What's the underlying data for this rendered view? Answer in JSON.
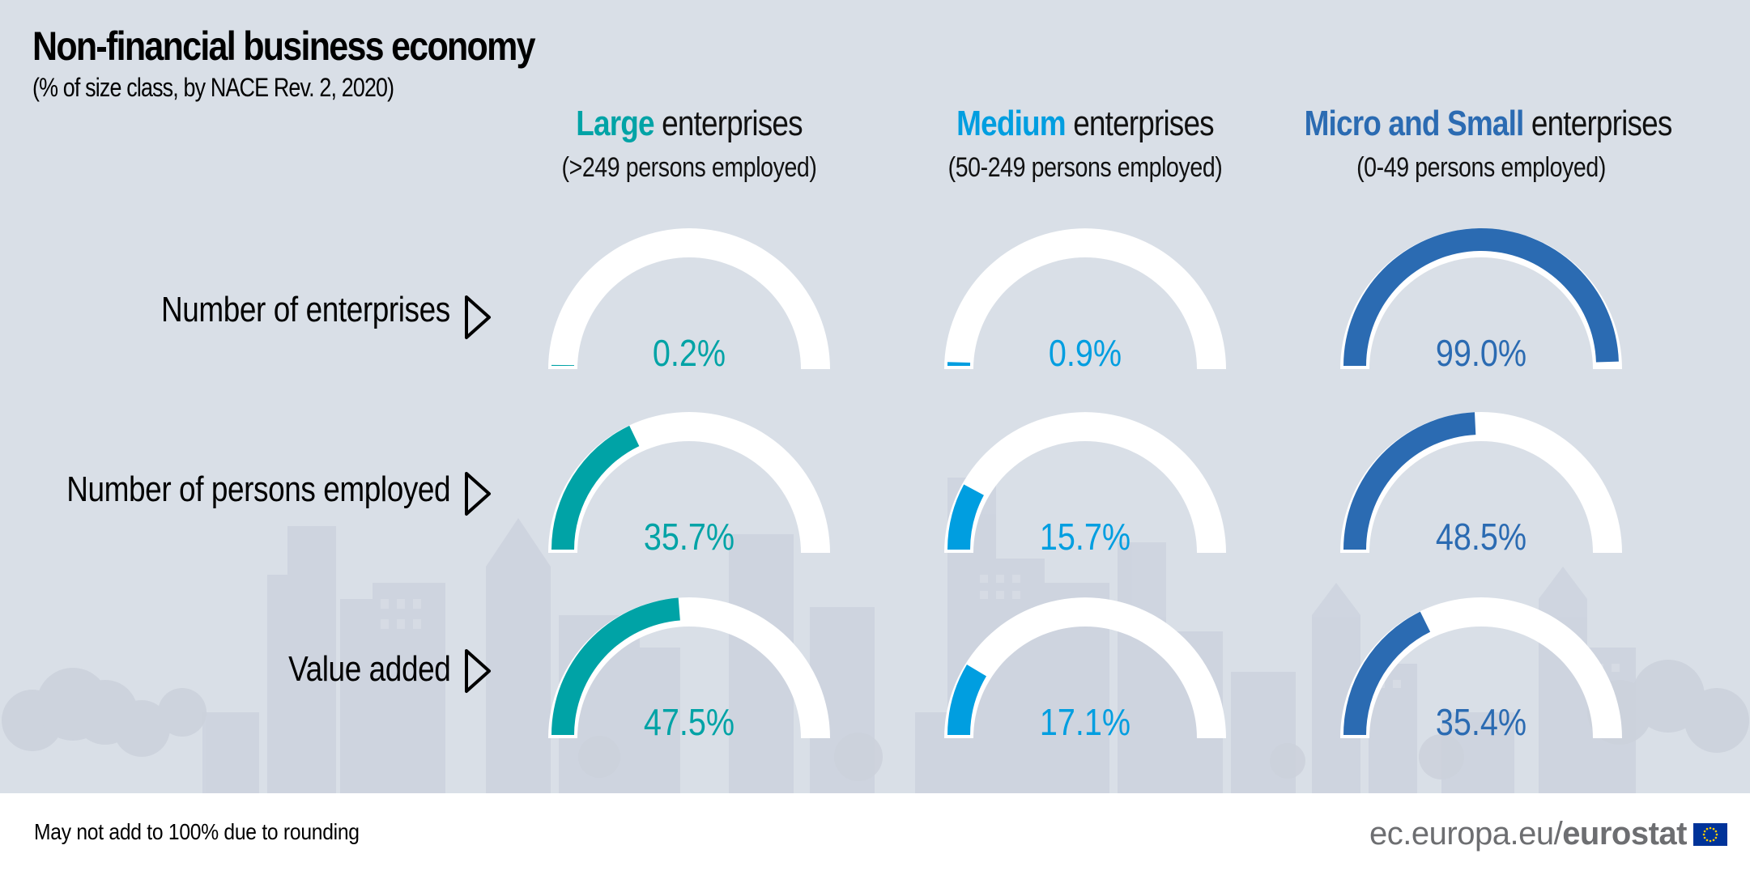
{
  "header": {
    "title": "Non-financial business economy",
    "subtitle": "(% of size class, by NACE Rev. 2, 2020)"
  },
  "columns": [
    {
      "highlight": "Large",
      "rest": " enterprises",
      "range": "(>249 persons employed)",
      "color": "#00a3a6"
    },
    {
      "highlight": "Medium",
      "rest": " enterprises",
      "range": "(50-249 persons employed)",
      "color": "#009ee0"
    },
    {
      "highlight": "Micro and Small",
      "rest": " enterprises",
      "range": "(0-49 persons employed)",
      "color": "#2b6bb2"
    }
  ],
  "rows": [
    {
      "label": "Number of enterprises"
    },
    {
      "label": "Number of persons employed"
    },
    {
      "label": "Value added"
    }
  ],
  "chart_data": {
    "type": "gauge",
    "title": "Non-financial business economy",
    "subtitle": "(% of size class, by NACE Rev. 2, 2020)",
    "unit": "%",
    "range": [
      0,
      100
    ],
    "categories": [
      "Large enterprises",
      "Medium enterprises",
      "Micro and Small enterprises"
    ],
    "metrics": [
      "Number of enterprises",
      "Number of persons employed",
      "Value added"
    ],
    "series": [
      {
        "name": "Large enterprises",
        "color": "#00a3a6",
        "values": [
          0.2,
          35.7,
          47.5
        ],
        "labels": [
          "0.2%",
          "35.7%",
          "47.5%"
        ]
      },
      {
        "name": "Medium enterprises",
        "color": "#009ee0",
        "values": [
          0.9,
          15.7,
          17.1
        ],
        "labels": [
          "0.9%",
          "15.7%",
          "17.1%"
        ]
      },
      {
        "name": "Micro and Small enterprises",
        "color": "#2b6bb2",
        "values": [
          99.0,
          48.5,
          35.4
        ],
        "labels": [
          "99.0%",
          "48.5%",
          "35.4%"
        ]
      }
    ],
    "track_color": "#ffffff"
  },
  "footer": {
    "note": "May not add to 100% due to rounding",
    "logo_domain": "ec.europa.eu/",
    "logo_brand": "eurostat",
    "logo_icon": "eu-flag-icon"
  }
}
